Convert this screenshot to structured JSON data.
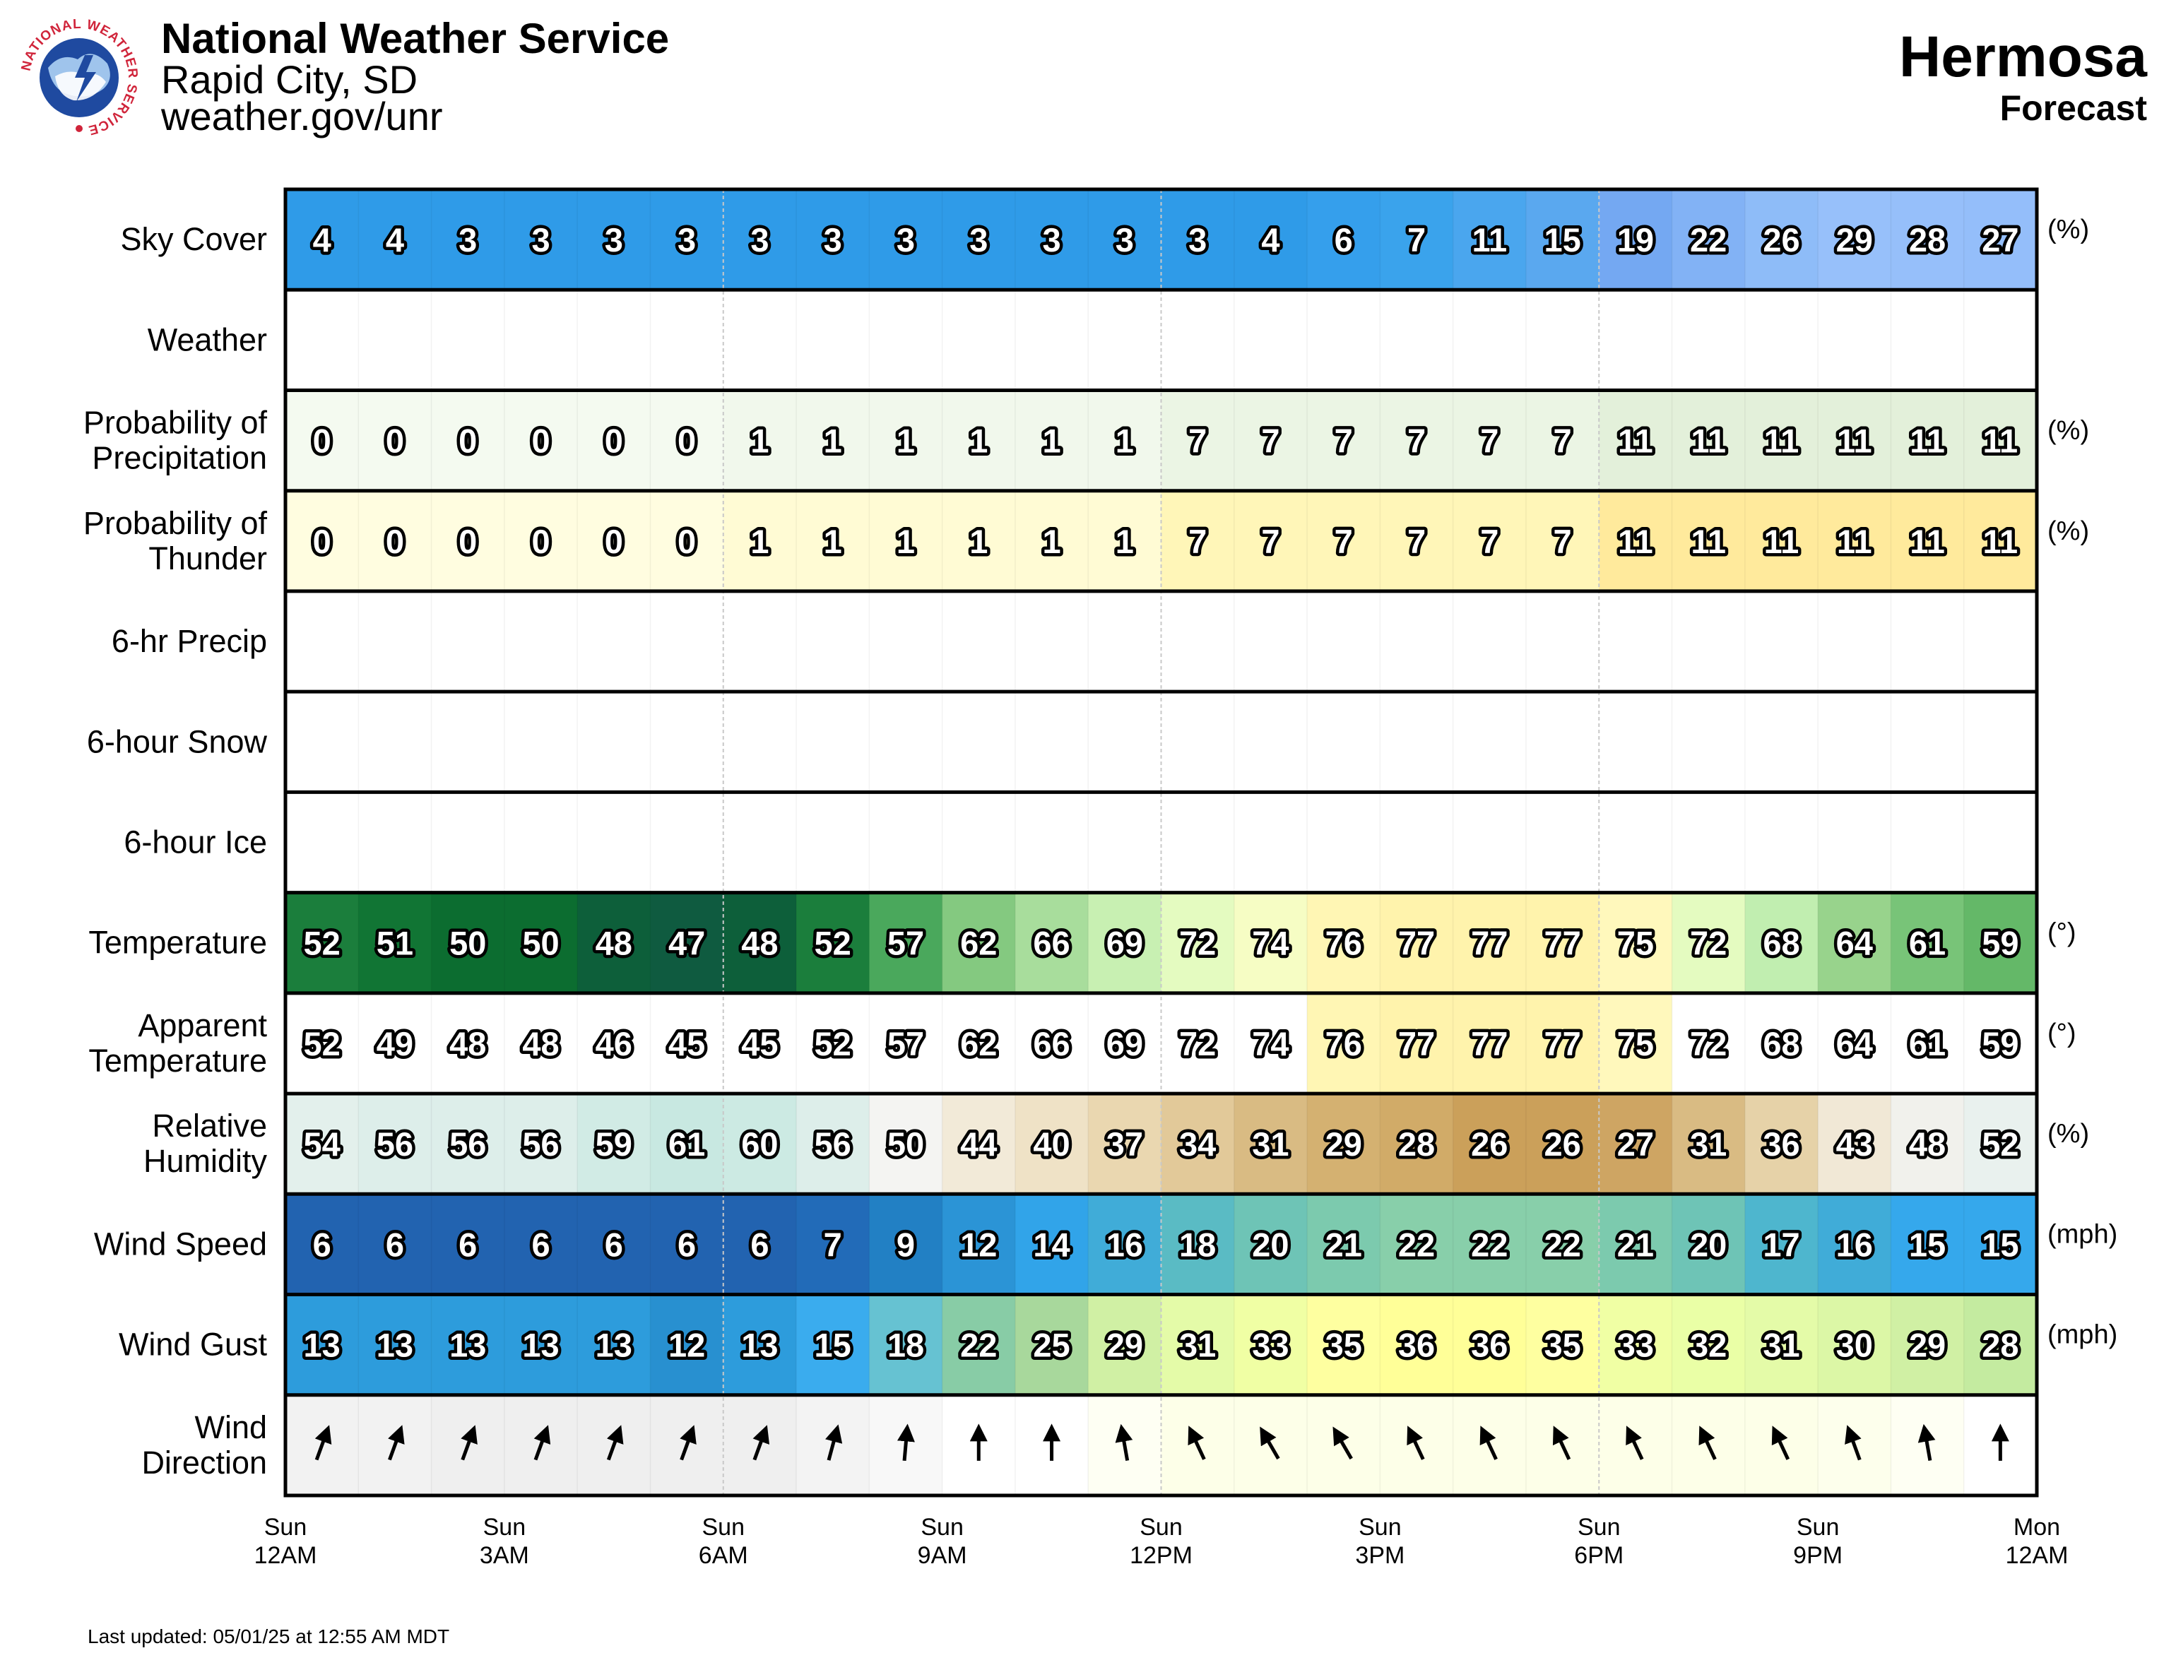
{
  "header": {
    "org_name": "National Weather Service",
    "office": "Rapid City, SD",
    "url": "weather.gov/unr",
    "location": "Hermosa",
    "subtitle": "Forecast",
    "logo_text": "NATIONAL WEATHER SERVICE"
  },
  "footer": {
    "last_updated": "Last updated: 05/01/25 at 12:55 AM MDT"
  },
  "chart_data": {
    "type": "table",
    "hours": 24,
    "x_ticks": [
      {
        "hour": 0,
        "day": "Sun",
        "time": "12AM"
      },
      {
        "hour": 3,
        "day": "Sun",
        "time": "3AM"
      },
      {
        "hour": 6,
        "day": "Sun",
        "time": "6AM"
      },
      {
        "hour": 9,
        "day": "Sun",
        "time": "9AM"
      },
      {
        "hour": 12,
        "day": "Sun",
        "time": "12PM"
      },
      {
        "hour": 15,
        "day": "Sun",
        "time": "3PM"
      },
      {
        "hour": 18,
        "day": "Sun",
        "time": "6PM"
      },
      {
        "hour": 21,
        "day": "Sun",
        "time": "9PM"
      },
      {
        "hour": 24,
        "day": "Mon",
        "time": "12AM"
      }
    ],
    "rows": [
      {
        "key": "sky-cover",
        "label": [
          "Sky Cover"
        ],
        "unit": "(%)",
        "values": [
          4,
          4,
          3,
          3,
          3,
          3,
          3,
          3,
          3,
          3,
          3,
          3,
          3,
          4,
          6,
          7,
          11,
          15,
          19,
          22,
          26,
          29,
          28,
          27
        ],
        "colors": [
          "#2f9be8",
          "#2f9be8",
          "#2f9be8",
          "#2f9be8",
          "#2f9be8",
          "#2f9be8",
          "#2f9be8",
          "#2f9be8",
          "#2f9be8",
          "#2f9be8",
          "#2f9be8",
          "#2f9be8",
          "#2f9be8",
          "#2f9be8",
          "#359fec",
          "#3aa3ec",
          "#4aa6ee",
          "#5aa8ef",
          "#74a8f2",
          "#82b2f5",
          "#8ebcf8",
          "#97c0fa",
          "#96bffa",
          "#94befa"
        ]
      },
      {
        "key": "weather",
        "label": [
          "Weather"
        ],
        "unit": "",
        "values": [],
        "colors": []
      },
      {
        "key": "precip-probability",
        "label": [
          "Probability of",
          "Precipitation"
        ],
        "unit": "(%)",
        "values": [
          0,
          0,
          0,
          0,
          0,
          0,
          1,
          1,
          1,
          1,
          1,
          1,
          7,
          7,
          7,
          7,
          7,
          7,
          11,
          11,
          11,
          11,
          11,
          11
        ],
        "colors": [
          "#f4faf0",
          "#f4faf0",
          "#f4faf0",
          "#f4faf0",
          "#f4faf0",
          "#f4faf0",
          "#f1f8ec",
          "#f1f8ec",
          "#f1f8ec",
          "#f1f8ec",
          "#f1f8ec",
          "#f1f8ec",
          "#ebf5e4",
          "#ebf5e4",
          "#ebf5e4",
          "#ebf5e4",
          "#ebf5e4",
          "#ebf5e4",
          "#e3f0da",
          "#e3f0da",
          "#e3f0da",
          "#e3f0da",
          "#e3f0da",
          "#e3f0da"
        ]
      },
      {
        "key": "thunder-probability",
        "label": [
          "Probability of",
          "Thunder"
        ],
        "unit": "(%)",
        "values": [
          0,
          0,
          0,
          0,
          0,
          0,
          1,
          1,
          1,
          1,
          1,
          1,
          7,
          7,
          7,
          7,
          7,
          7,
          11,
          11,
          11,
          11,
          11,
          11
        ],
        "colors": [
          "#fffde0",
          "#fffde0",
          "#fffde0",
          "#fffde0",
          "#fffde0",
          "#fffde0",
          "#fffbd4",
          "#fffbd4",
          "#fffbd4",
          "#fffbd4",
          "#fffbd4",
          "#fffbd4",
          "#fff6b8",
          "#fff6b8",
          "#fff6b8",
          "#fff6b8",
          "#fff6b8",
          "#fff6b8",
          "#ffea9c",
          "#ffea9c",
          "#ffea9c",
          "#ffea9c",
          "#ffea9c",
          "#ffea9c"
        ]
      },
      {
        "key": "precip-6hr",
        "label": [
          "6-hr Precip"
        ],
        "unit": "",
        "values": [],
        "colors": []
      },
      {
        "key": "snow-6hr",
        "label": [
          "6-hour Snow"
        ],
        "unit": "",
        "values": [],
        "colors": []
      },
      {
        "key": "ice-6hr",
        "label": [
          "6-hour Ice"
        ],
        "unit": "",
        "values": [],
        "colors": []
      },
      {
        "key": "temperature",
        "label": [
          "Temperature"
        ],
        "unit": "(°)",
        "values": [
          52,
          51,
          50,
          50,
          48,
          47,
          48,
          52,
          57,
          62,
          66,
          69,
          72,
          74,
          76,
          77,
          77,
          77,
          75,
          72,
          68,
          64,
          61,
          59
        ],
        "colors": [
          "#1b7e3c",
          "#117534",
          "#0c6d30",
          "#0c6d30",
          "#0d5f3a",
          "#0f5b40",
          "#0d5f3a",
          "#1b7e3c",
          "#4aa85c",
          "#84c980",
          "#a8dd9c",
          "#c8f0b2",
          "#e4fbc0",
          "#f6fdc4",
          "#fff6b4",
          "#fff3ac",
          "#fff3ac",
          "#fff3ac",
          "#fff8bc",
          "#e4fbc0",
          "#c1eeb0",
          "#98d38c",
          "#78c478",
          "#64b868"
        ]
      },
      {
        "key": "apparent-temperature",
        "label": [
          "Apparent",
          "Temperature"
        ],
        "unit": "(°)",
        "values": [
          52,
          49,
          48,
          48,
          46,
          45,
          45,
          52,
          57,
          62,
          66,
          69,
          72,
          74,
          76,
          77,
          77,
          77,
          75,
          72,
          68,
          64,
          61,
          59
        ],
        "colors": [
          "#ffffff",
          "#ffffff",
          "#ffffff",
          "#ffffff",
          "#ffffff",
          "#ffffff",
          "#ffffff",
          "#ffffff",
          "#ffffff",
          "#ffffff",
          "#ffffff",
          "#ffffff",
          "#ffffff",
          "#ffffff",
          "#fff6b4",
          "#fff3ac",
          "#fff3ac",
          "#fff3ac",
          "#fff8bc",
          "#ffffff",
          "#ffffff",
          "#ffffff",
          "#ffffff",
          "#ffffff"
        ]
      },
      {
        "key": "relative-humidity",
        "label": [
          "Relative",
          "Humidity"
        ],
        "unit": "(%)",
        "values": [
          54,
          56,
          56,
          56,
          59,
          61,
          60,
          56,
          50,
          44,
          40,
          37,
          34,
          31,
          29,
          28,
          26,
          26,
          27,
          31,
          36,
          43,
          48,
          52
        ],
        "colors": [
          "#e3f0ec",
          "#ddeeea",
          "#ddeeea",
          "#ddeeea",
          "#d1ebe5",
          "#c8e8e1",
          "#cceae3",
          "#ddeeea",
          "#f4f4f2",
          "#f2ead8",
          "#efe2c6",
          "#ead7b0",
          "#e2c999",
          "#d9bb83",
          "#d4b171",
          "#d1ab68",
          "#cba05a",
          "#cba05a",
          "#cea563",
          "#d9bb83",
          "#e6d2a8",
          "#f1e8d6",
          "#f1f1ec",
          "#e9f1ee"
        ]
      },
      {
        "key": "wind-speed",
        "label": [
          "Wind Speed"
        ],
        "unit": "(mph)",
        "values": [
          6,
          6,
          6,
          6,
          6,
          6,
          6,
          7,
          9,
          12,
          14,
          16,
          18,
          20,
          21,
          22,
          22,
          22,
          21,
          20,
          17,
          16,
          15,
          15
        ],
        "colors": [
          "#2263b0",
          "#2263b0",
          "#2263b0",
          "#2263b0",
          "#2263b0",
          "#2263b0",
          "#2263b0",
          "#226bb8",
          "#2280c4",
          "#2b94d6",
          "#31a4e9",
          "#40acd8",
          "#5abbc4",
          "#6ec4b6",
          "#7ccaae",
          "#88cfaa",
          "#88cfaa",
          "#88cfaa",
          "#7ccaae",
          "#6ec4b6",
          "#4eb6ce",
          "#40acd8",
          "#35a8ec",
          "#35a8ec"
        ]
      },
      {
        "key": "wind-gust",
        "label": [
          "Wind Gust"
        ],
        "unit": "(mph)",
        "values": [
          13,
          13,
          13,
          13,
          13,
          12,
          13,
          15,
          18,
          22,
          25,
          29,
          31,
          33,
          35,
          36,
          36,
          35,
          33,
          32,
          31,
          30,
          29,
          28
        ],
        "colors": [
          "#2d9cdc",
          "#2d9cdc",
          "#2d9cdc",
          "#2d9cdc",
          "#2d9cdc",
          "#2890d0",
          "#2d9cdc",
          "#3aacee",
          "#66c2d2",
          "#88cca6",
          "#a8d89c",
          "#d0f0a4",
          "#e4fba8",
          "#f0ffa4",
          "#feffa0",
          "#ffff98",
          "#ffff98",
          "#feffa0",
          "#f0ffa4",
          "#eaffa6",
          "#e4fba8",
          "#dcf7a6",
          "#d0f0a4",
          "#c4eba0"
        ]
      },
      {
        "key": "wind-direction",
        "label": [
          "Wind",
          "Direction"
        ],
        "unit": "",
        "values": [
          20,
          20,
          20,
          20,
          20,
          20,
          20,
          15,
          5,
          0,
          0,
          -10,
          -25,
          -30,
          -30,
          -25,
          -25,
          -25,
          -25,
          -25,
          -25,
          -20,
          -10,
          0
        ],
        "colors": [
          "#f2f2f2",
          "#f2f2f2",
          "#efefef",
          "#efefef",
          "#efefef",
          "#efefef",
          "#efefef",
          "#f3f3f3",
          "#f8f8f8",
          "#ffffff",
          "#ffffff",
          "#fefff3",
          "#fdffe8",
          "#fdffe8",
          "#fdffe8",
          "#fdffe8",
          "#fdffe8",
          "#fdffe8",
          "#fdffe8",
          "#fdffe8",
          "#fdffe8",
          "#fdffec",
          "#fefff3",
          "#ffffff"
        ]
      }
    ]
  }
}
